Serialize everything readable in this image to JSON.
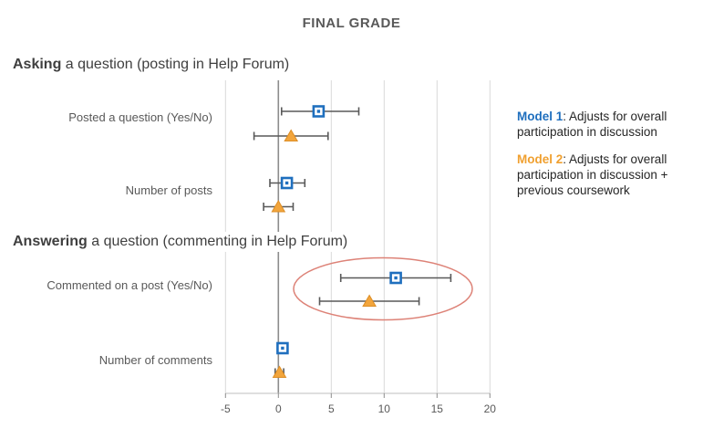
{
  "title": "FINAL GRADE",
  "legend": {
    "model1": {
      "name": "Model 1",
      "color": "#1f6fbe",
      "description": ": Adjusts for overall participation in discussion"
    },
    "model2": {
      "name": "Model 2",
      "color": "#f0a030",
      "description": ": Adjusts for overall participation in discussion + previous coursework"
    }
  },
  "chart_data": {
    "type": "forest-errorbar",
    "title": "FINAL GRADE",
    "xlabel": "",
    "xlim": [
      -5,
      20
    ],
    "x_ticks": [
      -5,
      0,
      5,
      10,
      15,
      20
    ],
    "grid": "vertical",
    "zero_line_at": 0,
    "legend_position": "right",
    "series_names": [
      "Model 1",
      "Model 2"
    ],
    "marker_styles": {
      "model1": "open-blue-square",
      "model2": "filled-orange-triangle"
    },
    "colors": {
      "model1": "#1f6fbe",
      "model2": "#f2a53c",
      "model2_edge": "#dd8e26",
      "error_bar": "#595959",
      "gridline": "#d9d9d9",
      "zero_line": "#8c8c8c",
      "axis_line": "#bfbfbf",
      "highlight_ellipse": "#dd8277",
      "text": "#595959"
    },
    "sections": [
      {
        "heading_bold": "Asking",
        "heading_rest": " a question (posting in Help Forum)",
        "rows": [
          {
            "label": "Posted a question (Yes/No)",
            "model1": {
              "estimate": 3.8,
              "ci_low": 0.3,
              "ci_high": 7.6
            },
            "model2": {
              "estimate": 1.2,
              "ci_low": -2.3,
              "ci_high": 4.7
            },
            "highlighted": false
          },
          {
            "label": "Number of posts",
            "model1": {
              "estimate": 0.8,
              "ci_low": -0.8,
              "ci_high": 2.5
            },
            "model2": {
              "estimate": 0.0,
              "ci_low": -1.4,
              "ci_high": 1.4
            },
            "highlighted": false
          }
        ]
      },
      {
        "heading_bold": "Answering",
        "heading_rest": " a question (commenting in Help Forum)",
        "rows": [
          {
            "label": "Commented on a post (Yes/No)",
            "model1": {
              "estimate": 11.1,
              "ci_low": 5.9,
              "ci_high": 16.3
            },
            "model2": {
              "estimate": 8.6,
              "ci_low": 3.9,
              "ci_high": 13.3
            },
            "highlighted": true
          },
          {
            "label": "Number of comments",
            "model1": {
              "estimate": 0.4,
              "ci_low": 0.3,
              "ci_high": 0.5
            },
            "model2": {
              "estimate": 0.1,
              "ci_low": -0.3,
              "ci_high": 0.5
            },
            "highlighted": false
          }
        ]
      }
    ],
    "annotations": [
      {
        "type": "ellipse",
        "around_row": "Commented on a post (Yes/No)",
        "color": "#dd8277"
      }
    ]
  }
}
